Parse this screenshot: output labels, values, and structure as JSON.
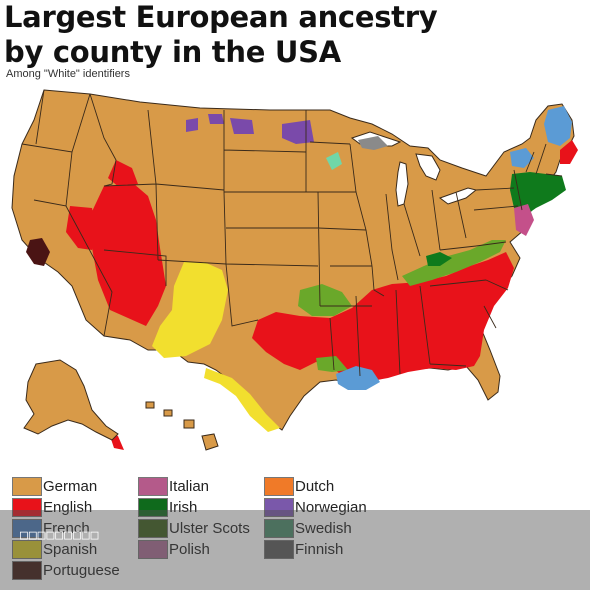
{
  "title_line1": "Largest European ancestry",
  "title_line2": "by county in the USA",
  "subtitle": "Among \"White\" identifiers",
  "overlay_text": "□□□□□□□□□",
  "legend": [
    {
      "label": "German",
      "color": "#d89a48"
    },
    {
      "label": "English",
      "color": "#e8121a"
    },
    {
      "label": "French",
      "color": "#4a7ab8"
    },
    {
      "label": "Spanish",
      "color": "#d6c628"
    },
    {
      "label": "Portuguese",
      "color": "#3c1812"
    },
    {
      "label": "Italian",
      "color": "#b45a8a"
    },
    {
      "label": "Irish",
      "color": "#0f6a1c"
    },
    {
      "label": "Ulster Scots",
      "color": "#3b5e1a"
    },
    {
      "label": "Polish",
      "color": "#a86a92"
    },
    {
      "label": "Dutch",
      "color": "#f07a28"
    },
    {
      "label": "Norwegian",
      "color": "#7a58aa"
    },
    {
      "label": "Swedish",
      "color": "#4a8a6a"
    },
    {
      "label": "Finnish",
      "color": "#5a5a5a"
    }
  ],
  "map_colors": {
    "german": "#d89a48",
    "english": "#e8121a",
    "mexican_spanish": "#f2df2e",
    "french": "#5b9bd5",
    "portuguese": "#4a1414",
    "irish": "#0f7a1c",
    "ulster": "#6aa82a",
    "norwegian": "#7a4aaa",
    "italian": "#c4508a",
    "swedish": "#70d6a8",
    "finnish": "#8a8a8a",
    "ocean": "#ffffff",
    "border": "#3a2a1a"
  }
}
